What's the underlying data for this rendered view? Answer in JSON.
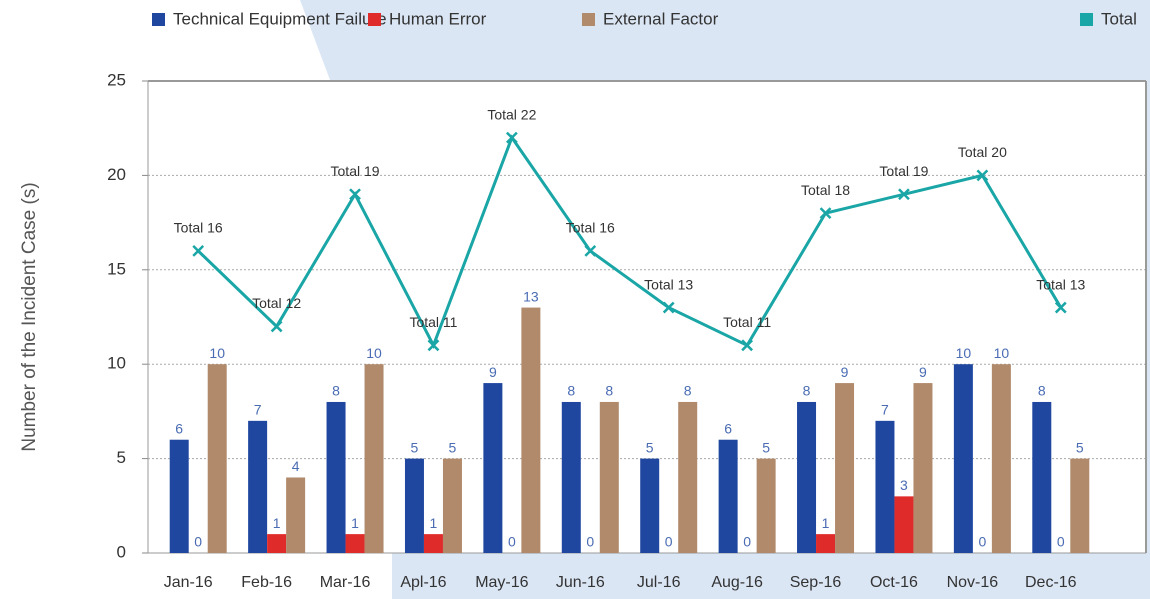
{
  "chart_data": {
    "type": "bar-line",
    "y_label": "Number of the Incident Case (s)",
    "categories": [
      "Jan-16",
      "Feb-16",
      "Mar-16",
      "Apl-16",
      "May-16",
      "Jun-16",
      "Jul-16",
      "Aug-16",
      "Sep-16",
      "Oct-16",
      "Nov-16",
      "Dec-16"
    ],
    "series": [
      {
        "name": "Technical Equipment Failure",
        "color": "#1f47a0",
        "type": "bar",
        "values": [
          6,
          7,
          8,
          5,
          9,
          8,
          5,
          6,
          8,
          7,
          10,
          8
        ]
      },
      {
        "name": "Human Error",
        "color": "#e02b2b",
        "type": "bar",
        "values": [
          0,
          1,
          1,
          1,
          0,
          0,
          0,
          0,
          1,
          3,
          0,
          0
        ]
      },
      {
        "name": "External Factor",
        "color": "#b08a6b",
        "type": "bar",
        "values": [
          10,
          4,
          10,
          5,
          13,
          8,
          8,
          5,
          9,
          9,
          10,
          5
        ]
      },
      {
        "name": "Total",
        "color": "#1aa6a6",
        "type": "line",
        "values": [
          16,
          12,
          19,
          11,
          22,
          16,
          13,
          11,
          18,
          19,
          20,
          13
        ],
        "value_labels": [
          "Total 16",
          "Total 12",
          "Total 19",
          "Total 11",
          "Total 22",
          "Total 16",
          "Total 13",
          "Total 11",
          "Total 18",
          "Total 19",
          "Total 20",
          "Total 13"
        ]
      }
    ],
    "ylim": [
      0,
      25
    ],
    "yticks": [
      0,
      5,
      10,
      15,
      20,
      25
    ],
    "grid": true,
    "legend": "top"
  }
}
